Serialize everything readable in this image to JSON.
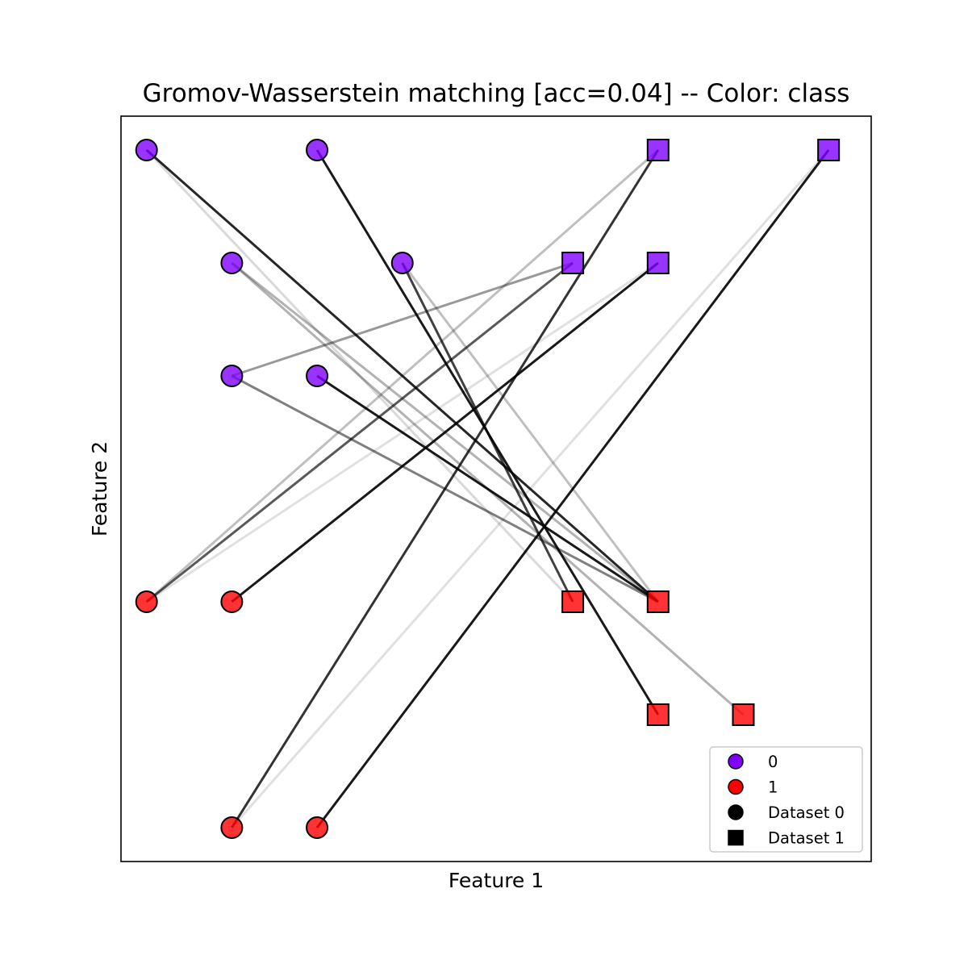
{
  "chart_data": {
    "type": "scatter",
    "title": "Gromov-Wasserstein matching [acc=0.04] -- Color: class",
    "xlabel": "Feature 1",
    "ylabel": "Feature 2",
    "xlim": [
      -0.3,
      8.5
    ],
    "ylim": [
      -6.3,
      0.3
    ],
    "xticks_shown": false,
    "yticks_shown": false,
    "grid": false,
    "legend_position": "bottom-right",
    "colors": {
      "class0": "#8000ff",
      "class1": "#ff0000",
      "edge": "#000000",
      "link": "#000000"
    },
    "series": [
      {
        "name": "Dataset 0",
        "marker": "circle",
        "points": [
          {
            "x": 0,
            "y": 0,
            "class": 0
          },
          {
            "x": 2,
            "y": 0,
            "class": 0
          },
          {
            "x": 1,
            "y": -1,
            "class": 0
          },
          {
            "x": 3,
            "y": -1,
            "class": 0
          },
          {
            "x": 1,
            "y": -2,
            "class": 0
          },
          {
            "x": 2,
            "y": -2,
            "class": 0
          },
          {
            "x": 0,
            "y": -4,
            "class": 1
          },
          {
            "x": 1,
            "y": -4,
            "class": 1
          },
          {
            "x": 1,
            "y": -6,
            "class": 1
          },
          {
            "x": 2,
            "y": -6,
            "class": 1
          }
        ]
      },
      {
        "name": "Dataset 1",
        "marker": "square",
        "points": [
          {
            "x": 6,
            "y": 0,
            "class": 0
          },
          {
            "x": 8,
            "y": 0,
            "class": 0
          },
          {
            "x": 5,
            "y": -1,
            "class": 0
          },
          {
            "x": 6,
            "y": -1,
            "class": 0
          },
          {
            "x": 5,
            "y": -4,
            "class": 1
          },
          {
            "x": 6,
            "y": -4,
            "class": 1
          },
          {
            "x": 6,
            "y": -5,
            "class": 1
          },
          {
            "x": 7,
            "y": -5,
            "class": 1
          }
        ]
      }
    ],
    "links": [
      {
        "from": [
          0,
          0
        ],
        "to": [
          6,
          -4
        ],
        "opacity": 0.85
      },
      {
        "from": [
          0,
          0
        ],
        "to": [
          5,
          -4
        ],
        "opacity": 0.15
      },
      {
        "from": [
          2,
          0
        ],
        "to": [
          6,
          -5
        ],
        "opacity": 0.9
      },
      {
        "from": [
          1,
          -1
        ],
        "to": [
          7,
          -5
        ],
        "opacity": 0.3
      },
      {
        "from": [
          1,
          -1
        ],
        "to": [
          6,
          -4
        ],
        "opacity": 0.3
      },
      {
        "from": [
          3,
          -1
        ],
        "to": [
          5,
          -4
        ],
        "opacity": 0.75
      },
      {
        "from": [
          3,
          -1
        ],
        "to": [
          6,
          -4
        ],
        "opacity": 0.25
      },
      {
        "from": [
          1,
          -2
        ],
        "to": [
          5,
          -1
        ],
        "opacity": 0.4
      },
      {
        "from": [
          1,
          -2
        ],
        "to": [
          6,
          -4
        ],
        "opacity": 0.5
      },
      {
        "from": [
          2,
          -2
        ],
        "to": [
          6,
          -4
        ],
        "opacity": 0.9
      },
      {
        "from": [
          0,
          -4
        ],
        "to": [
          5,
          -1
        ],
        "opacity": 0.65
      },
      {
        "from": [
          0,
          -4
        ],
        "to": [
          6,
          0
        ],
        "opacity": 0.25
      },
      {
        "from": [
          0,
          -4
        ],
        "to": [
          6,
          -1
        ],
        "opacity": 0.12
      },
      {
        "from": [
          1,
          -4
        ],
        "to": [
          6,
          -1
        ],
        "opacity": 0.9
      },
      {
        "from": [
          1,
          -6
        ],
        "to": [
          6,
          0
        ],
        "opacity": 0.8
      },
      {
        "from": [
          1,
          -6
        ],
        "to": [
          8,
          0
        ],
        "opacity": 0.12
      },
      {
        "from": [
          2,
          -6
        ],
        "to": [
          8,
          0
        ],
        "opacity": 0.9
      }
    ],
    "legend": [
      {
        "label": "0",
        "marker": "circle",
        "color": "#8000ff"
      },
      {
        "label": "1",
        "marker": "circle",
        "color": "#ff0000"
      },
      {
        "label": "Dataset 0",
        "marker": "circle",
        "color": "#000000"
      },
      {
        "label": "Dataset 1",
        "marker": "square",
        "color": "#000000"
      }
    ]
  }
}
